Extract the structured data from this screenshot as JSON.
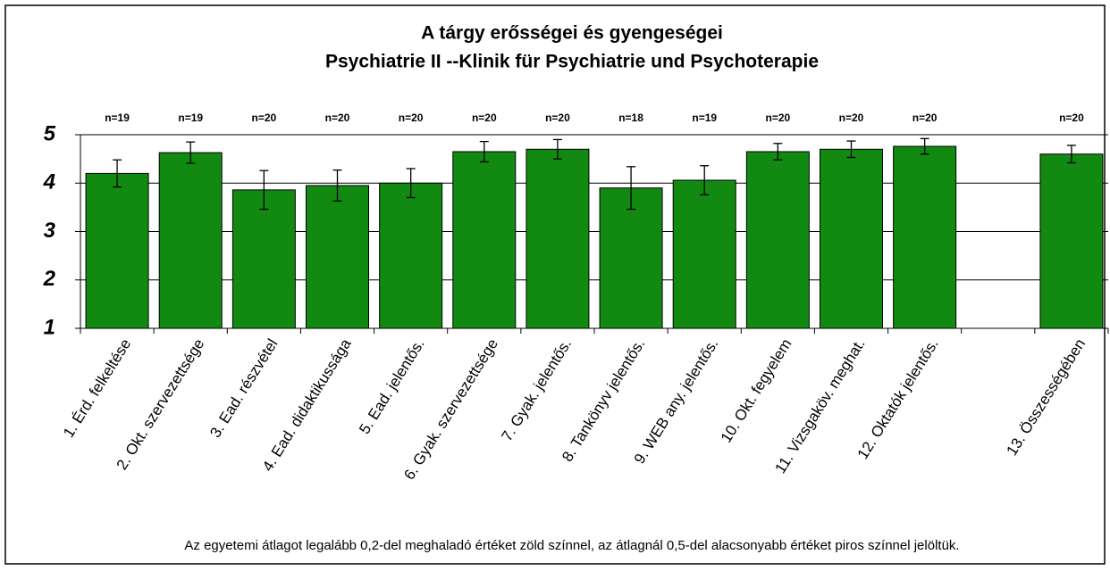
{
  "chart_data": {
    "type": "bar",
    "title": "A tárgy erősségei és gyengeségei",
    "subtitle": "Psychiatrie II --Klinik für Psychiatrie und Psychoterapie",
    "categories": [
      "1. Érd. felkeltése",
      "2. Okt. szervezettsége",
      "3. Ead. részvétel",
      "4. Ead. didaktikussága",
      "5. Ead. jelentős.",
      "6. Gyak. szervezettsége",
      "7. Gyak. jelentős.",
      "8. Tankönyv jelentős.",
      "9. WEB any. jelentős.",
      "10. Okt. fegyelem",
      "11. Vizsgaköv. meghat.",
      "12. Oktatók jelentős.",
      null,
      "13. Összességében"
    ],
    "values": [
      4.2,
      4.63,
      3.86,
      3.95,
      4.0,
      4.65,
      4.7,
      3.9,
      4.06,
      4.65,
      4.7,
      4.76,
      null,
      4.6
    ],
    "errors": [
      0.28,
      0.22,
      0.4,
      0.32,
      0.3,
      0.21,
      0.2,
      0.44,
      0.3,
      0.17,
      0.17,
      0.16,
      null,
      0.18
    ],
    "n_labels": [
      "n=19",
      "n=19",
      "n=20",
      "n=20",
      "n=20",
      "n=20",
      "n=20",
      "n=18",
      "n=19",
      "n=20",
      "n=20",
      "n=20",
      null,
      "n=20"
    ],
    "color": "#128a12",
    "ylim": [
      1,
      5
    ],
    "yticks": [
      1,
      2,
      3,
      4,
      5
    ],
    "grid": true,
    "note": "Az egyetemi átlagot legalább 0,2-del meghaladó értéket zöld színnel, az átlagnál 0,5-del alacsonyabb értéket piros színnel jelöltük."
  }
}
